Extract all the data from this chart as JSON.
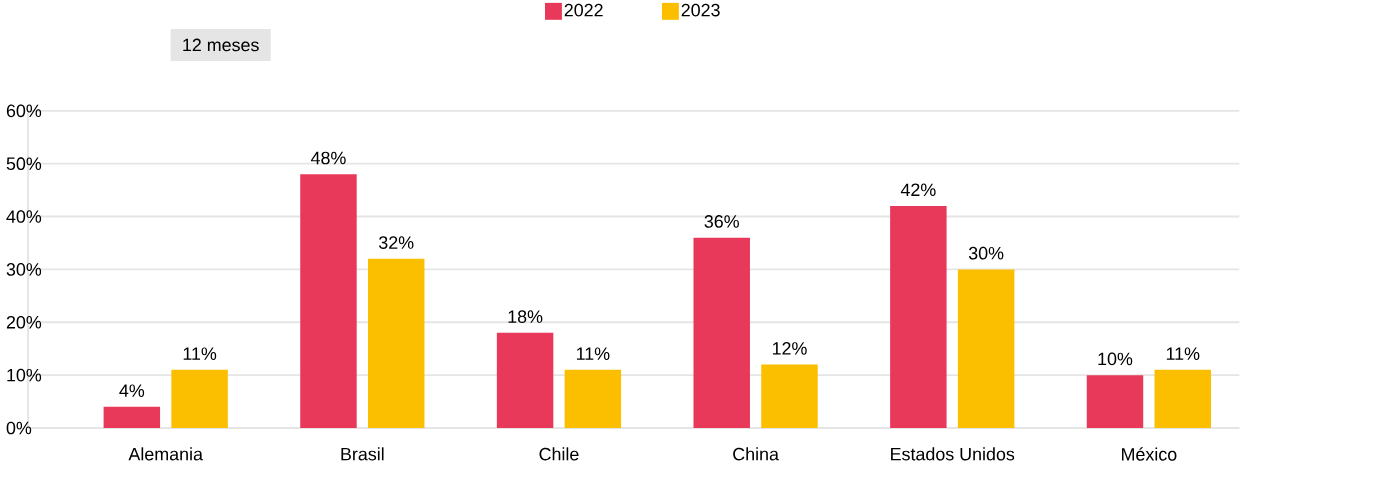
{
  "chart_data": {
    "type": "bar",
    "categories": [
      "Alemania",
      "Brasil",
      "Chile",
      "China",
      "Estados Unidos",
      "México"
    ],
    "series": [
      {
        "name": "2022",
        "color": "#e8395a",
        "values": [
          4,
          48,
          18,
          36,
          42,
          10
        ],
        "value_labels": [
          "4%",
          "48%",
          "18%",
          "36%",
          "42%",
          "10%"
        ]
      },
      {
        "name": "2023",
        "color": "#fbbf00",
        "values": [
          11,
          32,
          11,
          12,
          30,
          11
        ],
        "value_labels": [
          "11%",
          "32%",
          "11%",
          "12%",
          "30%",
          "11%"
        ]
      }
    ],
    "ylim": [
      0,
      60
    ],
    "yticks": [
      {
        "value": 0,
        "label": "0%"
      },
      {
        "value": 10,
        "label": "10%"
      },
      {
        "value": 20,
        "label": "20%"
      },
      {
        "value": 30,
        "label": "30%"
      },
      {
        "value": 40,
        "label": "40%"
      },
      {
        "value": 50,
        "label": "50%"
      },
      {
        "value": 60,
        "label": "60%"
      }
    ],
    "grid": "y",
    "legend": "top",
    "annotations": [
      "12 meses"
    ]
  }
}
